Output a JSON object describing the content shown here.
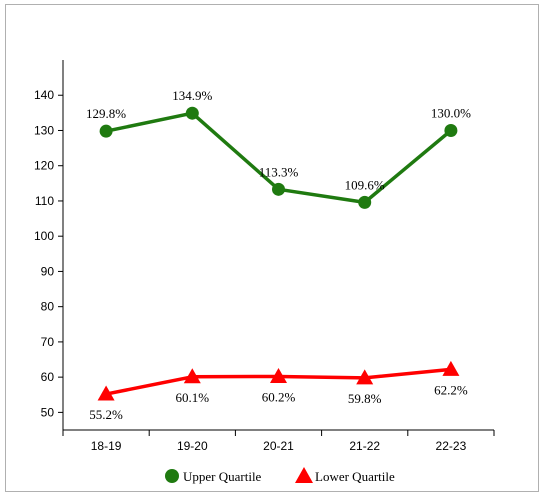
{
  "chart_data": {
    "type": "line",
    "categories": [
      "18-19",
      "19-20",
      "20-21",
      "21-22",
      "22-23"
    ],
    "ylim": [
      45,
      150
    ],
    "yticks": [
      50,
      60,
      70,
      80,
      90,
      100,
      110,
      120,
      130,
      140
    ],
    "grid": false,
    "legend_position": "bottom",
    "series": [
      {
        "name": "Upper Quartile",
        "values": [
          129.8,
          134.9,
          113.3,
          109.6,
          130.0
        ],
        "labels": [
          "129.8%",
          "134.9%",
          "113.3%",
          "109.6%",
          "130.0%"
        ],
        "color": "#1f7a10",
        "marker": "circle",
        "label_position": "above"
      },
      {
        "name": "Lower Quartile",
        "values": [
          55.2,
          60.1,
          60.2,
          59.8,
          62.2
        ],
        "labels": [
          "55.2%",
          "60.1%",
          "60.2%",
          "59.8%",
          "62.2%"
        ],
        "color": "#ff0000",
        "marker": "triangle",
        "label_position": "below"
      }
    ]
  }
}
